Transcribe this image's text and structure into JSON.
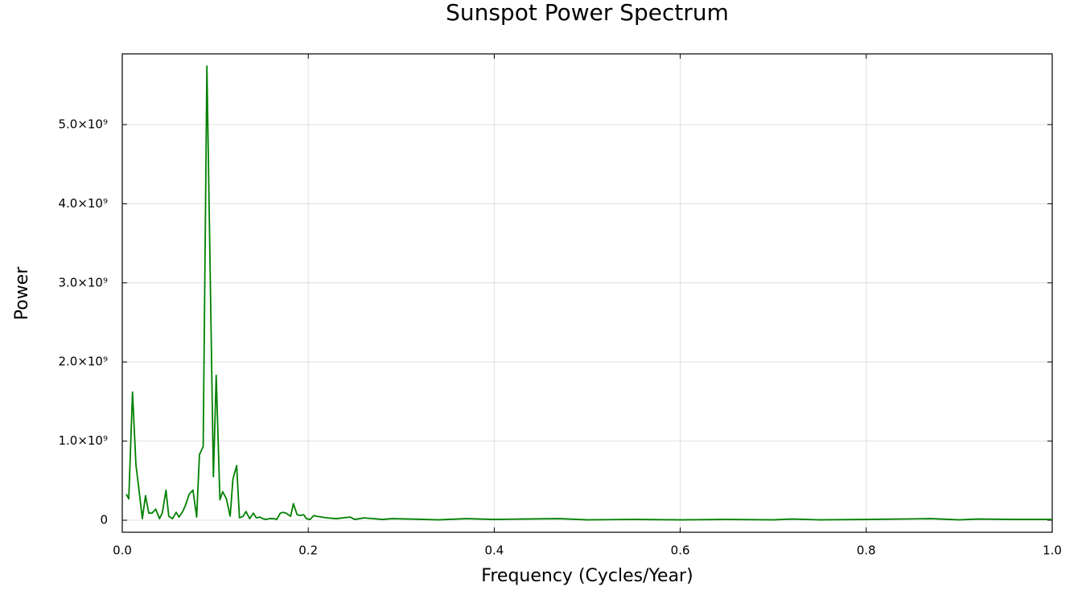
{
  "chart_data": {
    "type": "line",
    "title": "Sunspot Power Spectrum",
    "x_label": "Frequency (Cycles/Year)",
    "y_label": "Power",
    "color": "#008000",
    "grid": true,
    "xlim": [
      0,
      1
    ],
    "ylim": [
      -152000000.0,
      5894000000.0
    ],
    "xticks": [
      {
        "value": 0,
        "label": "0.0"
      },
      0.2,
      0.4,
      0.6,
      0.8,
      {
        "value": 1,
        "label": "1.0"
      }
    ],
    "yticks": [
      0,
      {
        "value": 1000000000.0,
        "label": "1.0×10⁹"
      },
      {
        "value": 2000000000.0,
        "label": "2.0×10⁹"
      },
      {
        "value": 3000000000.0,
        "label": "3.0×10⁹"
      },
      {
        "value": 4000000000.0,
        "label": "4.0×10⁹"
      },
      {
        "value": 5000000000.0,
        "label": "5.0×10⁹"
      }
    ],
    "x": [
      0.0043,
      0.007,
      0.011,
      0.0147,
      0.018,
      0.0216,
      0.025,
      0.0285,
      0.032,
      0.036,
      0.04,
      0.043,
      0.047,
      0.05,
      0.054,
      0.058,
      0.061,
      0.065,
      0.068,
      0.072,
      0.076,
      0.08,
      0.083,
      0.087,
      0.091,
      0.098,
      0.101,
      0.105,
      0.108,
      0.112,
      0.116,
      0.119,
      0.123,
      0.126,
      0.13,
      0.133,
      0.137,
      0.141,
      0.144,
      0.148,
      0.151,
      0.155,
      0.158,
      0.163,
      0.166,
      0.17,
      0.173,
      0.176,
      0.181,
      0.184,
      0.188,
      0.191,
      0.195,
      0.198,
      0.202,
      0.206,
      0.209,
      0.22,
      0.23,
      0.245,
      0.25,
      0.26,
      0.28,
      0.29,
      0.31,
      0.34,
      0.37,
      0.4,
      0.43,
      0.47,
      0.5,
      0.55,
      0.6,
      0.65,
      0.7,
      0.72,
      0.75,
      0.8,
      0.87,
      0.9,
      0.92,
      0.96,
      1.0
    ],
    "values": [
      330000000.0,
      270000000.0,
      1620000000.0,
      700000000.0,
      380000000.0,
      20000000.0,
      310000000.0,
      90000000.0,
      90000000.0,
      140000000.0,
      20000000.0,
      90000000.0,
      380000000.0,
      50000000.0,
      20000000.0,
      100000000.0,
      40000000.0,
      110000000.0,
      190000000.0,
      330000000.0,
      380000000.0,
      40000000.0,
      830000000.0,
      930000000.0,
      5740000000.0,
      550000000.0,
      1830000000.0,
      260000000.0,
      360000000.0,
      270000000.0,
      50000000.0,
      520000000.0,
      690000000.0,
      30000000.0,
      50000000.0,
      110000000.0,
      20000000.0,
      90000000.0,
      30000000.0,
      40000000.0,
      20000000.0,
      10000000.0,
      20000000.0,
      20000000.0,
      10000000.0,
      90000000.0,
      100000000.0,
      90000000.0,
      50000000.0,
      210000000.0,
      70000000.0,
      60000000.0,
      70000000.0,
      20000000.0,
      10000000.0,
      60000000.0,
      50000000.0,
      30000000.0,
      20000000.0,
      40000000.0,
      10000000.0,
      30000000.0,
      10000000.0,
      20000000.0,
      15000000.0,
      5000000.0,
      20000000.0,
      10000000.0,
      15000000.0,
      20000000.0,
      5000000.0,
      10000000.0,
      5000000.0,
      10000000.0,
      5000000.0,
      15000000.0,
      5000000.0,
      10000000.0,
      20000000.0,
      5000000.0,
      15000000.0,
      10000000.0,
      10000000.0
    ]
  }
}
